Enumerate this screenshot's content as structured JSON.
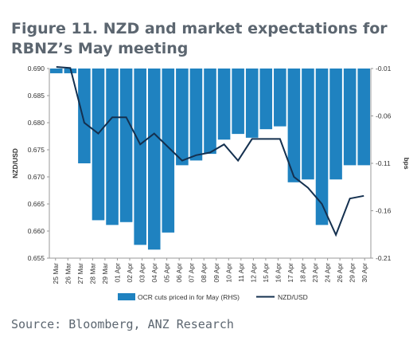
{
  "figure": {
    "title": "Figure 11. NZD and market expectations for RBNZ’s May meeting",
    "source": "Source: Bloomberg, ANZ Research"
  },
  "chart_data": {
    "type": "bar",
    "categories": [
      "25 Mar",
      "26 Mar",
      "27 Mar",
      "28 Mar",
      "29 Mar",
      "01 Apr",
      "02 Apr",
      "03 Apr",
      "04 Apr",
      "05 Apr",
      "08 Apr",
      "09 Apr",
      "10 Apr",
      "11 Apr",
      "12 Apr",
      "15 Apr",
      "16 Apr",
      "17 Apr",
      "18 Apr",
      "23 Apr",
      "24 Apr",
      "29 Apr",
      "30 Apr"
    ],
    "x_tick_labels": [
      "25 Mar",
      "26 Mar",
      "27 Mar",
      "28 Mar",
      "29 Mar",
      "01 Apr",
      "02 Apr",
      "03 Apr",
      "04 Apr",
      "05 Apr",
      "06 Apr",
      "07 Apr",
      "08 Apr",
      "09 Apr",
      "10 Apr",
      "11 Apr",
      "12 Apr",
      "15 Apr",
      "16 Apr",
      "17 Apr",
      "18 Apr",
      "23 Apr",
      "24 Apr",
      "26 Apr",
      "29 Apr",
      "30 Apr"
    ],
    "series": [
      {
        "name": "OCR cuts priced in for May (RHS)",
        "axis": "right",
        "kind": "bar",
        "color": "#1f82c0",
        "values": [
          -0.015,
          -0.015,
          -0.11,
          -0.17,
          -0.175,
          -0.172,
          -0.196,
          -0.201,
          -0.183,
          -0.112,
          -0.107,
          -0.1,
          -0.085,
          -0.079,
          -0.083,
          -0.074,
          -0.071,
          -0.13,
          -0.127,
          -0.175,
          -0.127,
          -0.112,
          -0.112
        ]
      },
      {
        "name": "NZD/USD",
        "axis": "left",
        "kind": "line",
        "color": "#14304f",
        "x": [
          0.0,
          1.0,
          2.0,
          3.0,
          4.0,
          5.0,
          6.0,
          7.0,
          8.0,
          9.0,
          10.0,
          11.0,
          12.0,
          13.0,
          14.0,
          15.0,
          16.0,
          17.0,
          18.0,
          19.0,
          20.0,
          21.0,
          22.0
        ],
        "values": [
          0.6903,
          0.6901,
          0.68,
          0.678,
          0.681,
          0.681,
          0.676,
          0.678,
          0.6755,
          0.673,
          0.674,
          0.6745,
          0.676,
          0.673,
          0.677,
          0.677,
          0.677,
          0.67,
          0.668,
          0.665,
          0.6593,
          0.666,
          0.6665
        ]
      }
    ],
    "ylabel_left": "NZD/USD",
    "ylabel_right": "bps",
    "ylim_left": [
      0.655,
      0.69
    ],
    "yticks_left": [
      "0.655",
      "0.660",
      "0.665",
      "0.670",
      "0.675",
      "0.680",
      "0.685",
      "0.690"
    ],
    "ylim_right": [
      -0.21,
      -0.01
    ],
    "yticks_right": [
      "-0.01",
      "-0.06",
      "-0.11",
      "-0.16",
      "-0.21"
    ],
    "legend_placement": "bottom",
    "grid": false
  }
}
